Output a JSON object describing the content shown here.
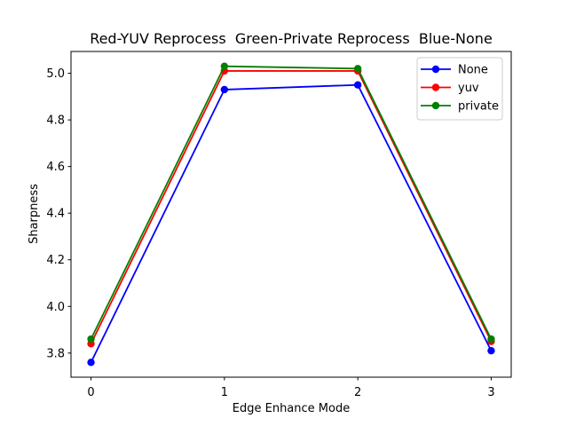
{
  "chart_data": {
    "type": "line",
    "title": "Red-YUV Reprocess  Green-Private Reprocess  Blue-None",
    "xlabel": "Edge Enhance Mode",
    "ylabel": "Sharpness",
    "x": [
      0,
      1,
      2,
      3
    ],
    "series": [
      {
        "name": "None",
        "color": "#0000ff",
        "values": [
          3.76,
          4.93,
          4.95,
          3.81
        ]
      },
      {
        "name": "yuv",
        "color": "#ff0000",
        "values": [
          3.84,
          5.01,
          5.01,
          3.85
        ]
      },
      {
        "name": "private",
        "color": "#008000",
        "values": [
          3.86,
          5.03,
          5.02,
          3.86
        ]
      }
    ],
    "xlim": [
      -0.15,
      3.15
    ],
    "ylim": [
      3.6965,
      5.0935
    ],
    "xticks": [
      0,
      1,
      2,
      3
    ],
    "yticks": [
      3.8,
      4.0,
      4.2,
      4.4,
      4.6,
      4.8,
      5.0
    ],
    "grid": false,
    "marker": "o",
    "legend_position": "upper right"
  },
  "colors": {
    "background": "#ffffff",
    "axis": "#000000",
    "legend_border": "#cccccc"
  }
}
